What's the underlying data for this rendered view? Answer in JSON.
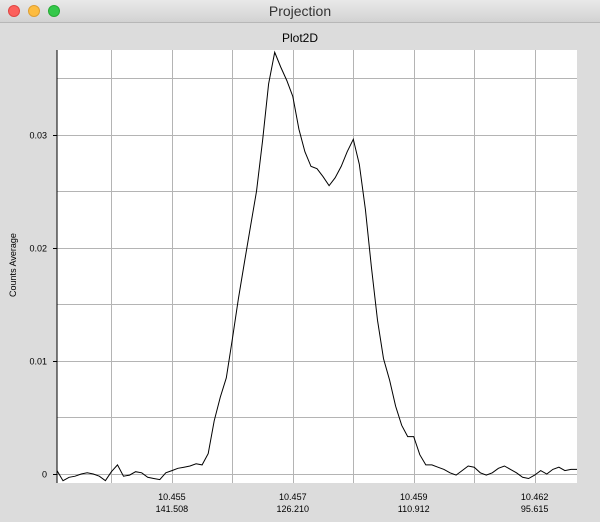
{
  "window": {
    "title": "Projection"
  },
  "colors": {
    "close": "#fc605c",
    "minimize": "#fdbc40",
    "maximize": "#34c84a",
    "line": "#000000",
    "grid": "#b4b4b4"
  },
  "chart_data": {
    "type": "line",
    "title": "Plot2D",
    "xlabel": "",
    "ylabel": "Counts Average",
    "grid": true,
    "ylim": [
      -0.0008,
      0.0375
    ],
    "y_ticks": [
      {
        "value": 0,
        "label": "0"
      },
      {
        "value": 0.01,
        "label": "0.01"
      },
      {
        "value": 0.02,
        "label": "0.02"
      },
      {
        "value": 0.03,
        "label": "0.03"
      }
    ],
    "x_ticks": [
      {
        "index": 19,
        "label1": "10.455",
        "label2": "141.508"
      },
      {
        "index": 39,
        "label1": "10.457",
        "label2": "126.210"
      },
      {
        "index": 59,
        "label1": "10.459",
        "label2": "110.912"
      },
      {
        "index": 79,
        "label1": "10.462",
        "label2": "95.615"
      }
    ],
    "x_range": [
      0,
      86
    ],
    "series": [
      {
        "values": [
          0.0003,
          -0.0006,
          -0.0003,
          -0.0002,
          0.0,
          0.0001,
          0.0,
          -0.0002,
          -0.0006,
          0.0002,
          0.0008,
          -0.0002,
          -0.0001,
          0.0002,
          0.0001,
          -0.0003,
          -0.0004,
          -0.0005,
          0.0001,
          0.0003,
          0.0005,
          0.0006,
          0.0007,
          0.0009,
          0.0008,
          0.0018,
          0.0047,
          0.0068,
          0.0085,
          0.0119,
          0.0155,
          0.0187,
          0.0219,
          0.025,
          0.0295,
          0.0345,
          0.0373,
          0.036,
          0.0348,
          0.0334,
          0.0305,
          0.0285,
          0.0272,
          0.027,
          0.0263,
          0.0255,
          0.0262,
          0.0272,
          0.0285,
          0.0296,
          0.0274,
          0.0234,
          0.0183,
          0.0136,
          0.0102,
          0.0083,
          0.006,
          0.0043,
          0.0033,
          0.0033,
          0.0017,
          0.0008,
          0.0008,
          0.0006,
          0.0004,
          0.0001,
          -0.0001,
          0.0003,
          0.0007,
          0.0006,
          0.0001,
          -0.0001,
          0.0001,
          0.0005,
          0.0007,
          0.0004,
          0.0001,
          -0.0003,
          -0.0004,
          -0.0001,
          0.0003,
          0.0,
          0.0004,
          0.0006,
          0.0003,
          0.0004,
          0.0004
        ]
      }
    ]
  }
}
